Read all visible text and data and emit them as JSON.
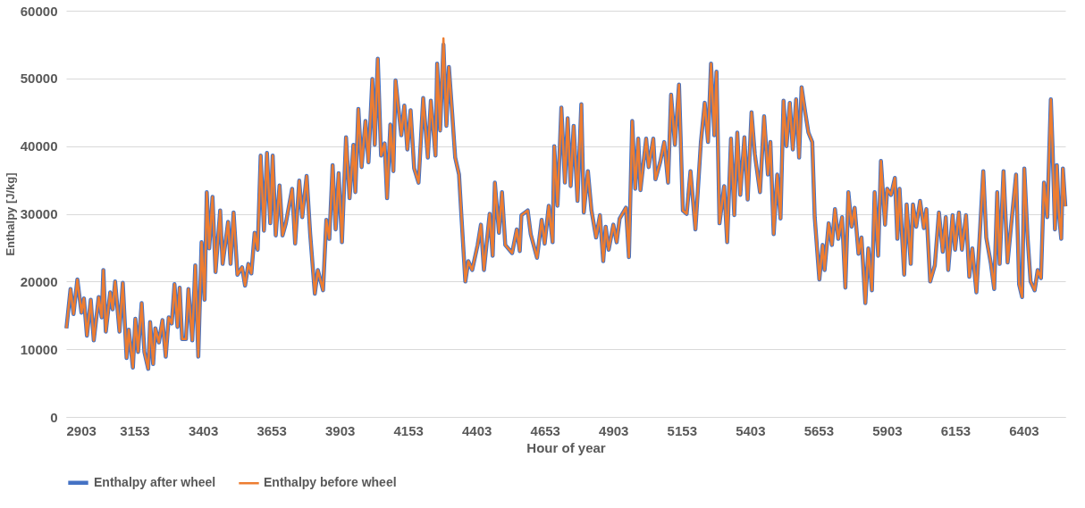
{
  "chart_data": {
    "type": "line",
    "xlabel": "Hour of year",
    "ylabel": "Enthalpy [J/kg]",
    "x": [
      2904,
      2919,
      2930,
      2944,
      2959,
      2968,
      2979,
      2993,
      3004,
      3022,
      3033,
      3039,
      3048,
      3064,
      3073,
      3082,
      3098,
      3110,
      3124,
      3132,
      3147,
      3156,
      3166,
      3179,
      3189,
      3203,
      3210,
      3221,
      3229,
      3242,
      3255,
      3267,
      3278,
      3289,
      3299,
      3310,
      3318,
      3327,
      3341,
      3350,
      3364,
      3375,
      3386,
      3398,
      3409,
      3417,
      3426,
      3438,
      3449,
      3466,
      3475,
      3495,
      3504,
      3515,
      3529,
      3546,
      3557,
      3569,
      3580,
      3592,
      3603,
      3614,
      3626,
      3637,
      3649,
      3658,
      3669,
      3683,
      3694,
      3706,
      3729,
      3740,
      3755,
      3766,
      3782,
      3795,
      3812,
      3823,
      3842,
      3854,
      3865,
      3877,
      3888,
      3899,
      3911,
      3926,
      3939,
      3953,
      3960,
      3971,
      3983,
      3997,
      4008,
      4022,
      4031,
      4042,
      4054,
      4067,
      4076,
      4088,
      4099,
      4107,
      4116,
      4128,
      4139,
      4150,
      4162,
      4175,
      4191,
      4208,
      4225,
      4236,
      4253,
      4259,
      4270,
      4282,
      4293,
      4302,
      4314,
      4325,
      4339,
      4348,
      4362,
      4373,
      4387,
      4407,
      4419,
      4430,
      4451,
      4462,
      4470,
      4485,
      4496,
      4508,
      4533,
      4550,
      4561,
      4567,
      4590,
      4601,
      4624,
      4641,
      4652,
      4667,
      4681,
      4687,
      4699,
      4713,
      4726,
      4736,
      4747,
      4758,
      4772,
      4786,
      4795,
      4810,
      4823,
      4840,
      4854,
      4866,
      4875,
      4886,
      4903,
      4915,
      4926,
      4949,
      4960,
      4972,
      4983,
      4994,
      5002,
      5023,
      5032,
      5049,
      5057,
      5074,
      5089,
      5103,
      5114,
      5128,
      5143,
      5157,
      5171,
      5185,
      5203,
      5223,
      5237,
      5249,
      5260,
      5272,
      5280,
      5291,
      5308,
      5319,
      5333,
      5345,
      5356,
      5367,
      5382,
      5394,
      5408,
      5420,
      5439,
      5454,
      5468,
      5477,
      5489,
      5502,
      5514,
      5525,
      5536,
      5548,
      5559,
      5571,
      5582,
      5591,
      5605,
      5616,
      5630,
      5639,
      5656,
      5668,
      5675,
      5690,
      5702,
      5713,
      5725,
      5739,
      5751,
      5762,
      5774,
      5785,
      5799,
      5810,
      5824,
      5835,
      5848,
      5858,
      5871,
      5881,
      5896,
      5904,
      5918,
      5932,
      5941,
      5949,
      5966,
      5975,
      5990,
      5998,
      6010,
      6024,
      6038,
      6047,
      6061,
      6078,
      6093,
      6107,
      6118,
      6127,
      6143,
      6152,
      6166,
      6177,
      6192,
      6204,
      6215,
      6230,
      6241,
      6255,
      6266,
      6283,
      6295,
      6306,
      6315,
      6329,
      6344,
      6355,
      6375,
      6386,
      6397,
      6405,
      6417,
      6428,
      6443,
      6454,
      6466,
      6477,
      6489,
      6502,
      6508,
      6517,
      6524,
      6531,
      6540,
      6546,
      6555
    ],
    "series": [
      {
        "name": "Enthalpy after wheel",
        "color": "#4472c4",
        "values": [
          13100,
          18900,
          15200,
          20300,
          15400,
          17500,
          12000,
          17300,
          11300,
          17700,
          14700,
          21700,
          12600,
          18400,
          15900,
          20000,
          12600,
          19800,
          8700,
          12900,
          7300,
          14500,
          9600,
          16800,
          9600,
          7100,
          14000,
          7800,
          13100,
          11000,
          14300,
          8900,
          14700,
          13800,
          19600,
          13300,
          19100,
          11500,
          11500,
          18900,
          11300,
          22400,
          8900,
          25800,
          17300,
          33200,
          24900,
          32500,
          21400,
          30500,
          22600,
          28800,
          22600,
          30200,
          21000,
          22100,
          19400,
          22600,
          21200,
          27200,
          24700,
          38600,
          27500,
          39000,
          28600,
          38600,
          26800,
          34200,
          26800,
          28600,
          33700,
          25600,
          34900,
          29500,
          35600,
          27000,
          18200,
          21700,
          18700,
          29100,
          26300,
          37200,
          27700,
          36000,
          25800,
          41300,
          32300,
          40200,
          33200,
          45500,
          36900,
          43700,
          37600,
          49900,
          40200,
          52900,
          38600,
          40400,
          32300,
          43200,
          36300,
          49700,
          46200,
          41600,
          46000,
          39500,
          45300,
          36700,
          34600,
          47100,
          38300,
          46700,
          38600,
          52200,
          42300,
          55000,
          43000,
          51700,
          44800,
          38300,
          35800,
          29500,
          20000,
          23000,
          21700,
          25400,
          28400,
          21700,
          30000,
          23800,
          34600,
          27200,
          33200,
          25400,
          24200,
          27700,
          24500,
          29800,
          30500,
          27000,
          23500,
          29100,
          25600,
          31200,
          25800,
          40000,
          31200,
          45700,
          34600,
          44100,
          34100,
          43000,
          31900,
          46200,
          30200,
          36300,
          30500,
          26500,
          29800,
          23000,
          28100,
          24700,
          28400,
          25800,
          29300,
          30900,
          23600,
          43700,
          33700,
          41100,
          33500,
          41100,
          36900,
          41100,
          35100,
          37600,
          40600,
          34600,
          47600,
          40200,
          49100,
          30500,
          30000,
          36300,
          27700,
          40600,
          46400,
          40600,
          52200,
          41600,
          51000,
          28600,
          34100,
          25800,
          41100,
          29800,
          42000,
          32800,
          41300,
          32100,
          45000,
          38800,
          33200,
          44400,
          35800,
          40600,
          27000,
          35800,
          29300,
          46700,
          40000,
          46400,
          39500,
          46900,
          38300,
          48700,
          44800,
          42000,
          40600,
          29500,
          20300,
          25400,
          21700,
          28600,
          25400,
          30700,
          26300,
          29500,
          19100,
          33200,
          28100,
          30900,
          24100,
          26500,
          16800,
          24900,
          18700,
          33200,
          23800,
          37800,
          28400,
          33700,
          32800,
          35300,
          26300,
          33700,
          21000,
          31400,
          22600,
          31400,
          28100,
          31900,
          27900,
          30700,
          20000,
          22400,
          30200,
          24400,
          29500,
          21700,
          29800,
          24700,
          30200,
          24700,
          29800,
          20700,
          24900,
          18400,
          26000,
          36300,
          26500,
          22600,
          18900,
          33200,
          22600,
          36300,
          22800,
          27500,
          35800,
          19600,
          17700,
          36700,
          26500,
          20000,
          18700,
          21700,
          20500,
          34600,
          29500,
          46900,
          40200,
          27700,
          37200,
          30300,
          26300,
          36700,
          31100
        ]
      },
      {
        "name": "Enthalpy before wheel",
        "color": "#ed7d31",
        "values": [
          13100,
          18900,
          15200,
          20300,
          15400,
          17500,
          12000,
          17300,
          11300,
          17700,
          14700,
          21700,
          12600,
          18400,
          15900,
          20000,
          12600,
          19800,
          8700,
          12900,
          7300,
          14500,
          9600,
          16800,
          9600,
          7100,
          14000,
          7800,
          13100,
          11000,
          14300,
          8900,
          14700,
          13800,
          19600,
          13300,
          19100,
          11500,
          11500,
          18900,
          11300,
          22400,
          8900,
          25800,
          17300,
          33200,
          24900,
          32500,
          21400,
          30500,
          22600,
          28800,
          22600,
          30200,
          21000,
          22100,
          19400,
          22600,
          21200,
          27200,
          24700,
          38600,
          27500,
          39000,
          28600,
          38600,
          26800,
          34200,
          26800,
          28600,
          33700,
          25600,
          34900,
          29500,
          35600,
          27000,
          18200,
          21700,
          18700,
          29100,
          26300,
          37200,
          27700,
          36000,
          25800,
          41300,
          32300,
          40200,
          33200,
          45500,
          36900,
          43700,
          37600,
          49900,
          40200,
          52900,
          38600,
          40400,
          32300,
          43200,
          36300,
          49700,
          46200,
          41600,
          46000,
          39500,
          45300,
          36700,
          34600,
          47100,
          38300,
          46700,
          38600,
          52200,
          42300,
          55900,
          43000,
          51700,
          44800,
          38300,
          35800,
          29500,
          20000,
          23000,
          21700,
          25400,
          28400,
          21700,
          30000,
          23800,
          34600,
          27200,
          33200,
          25400,
          24200,
          27700,
          24500,
          29800,
          30500,
          27000,
          23500,
          29100,
          25600,
          31200,
          25800,
          40000,
          31200,
          45700,
          34600,
          44100,
          34100,
          43000,
          31900,
          46200,
          30200,
          36300,
          30500,
          26500,
          29800,
          23000,
          28100,
          24700,
          28400,
          25800,
          29300,
          30900,
          23600,
          43700,
          33700,
          41100,
          33500,
          41100,
          36900,
          41100,
          35100,
          37600,
          40600,
          34600,
          47600,
          40200,
          49100,
          30500,
          30000,
          36300,
          27700,
          40600,
          46400,
          40600,
          52200,
          41600,
          51000,
          28600,
          34100,
          25800,
          41100,
          29800,
          42000,
          32800,
          41300,
          32100,
          45000,
          38800,
          33200,
          44400,
          35800,
          40600,
          27000,
          35800,
          29300,
          46700,
          40000,
          46400,
          39500,
          46900,
          38300,
          48700,
          44800,
          42000,
          40600,
          29500,
          20300,
          25400,
          21700,
          28600,
          25400,
          30700,
          26300,
          29500,
          19100,
          33200,
          28100,
          30900,
          24100,
          26500,
          16800,
          24900,
          18700,
          33200,
          23800,
          37800,
          28400,
          33700,
          32800,
          35300,
          26300,
          33700,
          21000,
          31400,
          22600,
          31400,
          28100,
          31900,
          27900,
          30700,
          20000,
          22400,
          30200,
          24400,
          29500,
          21700,
          29800,
          24700,
          30200,
          24700,
          29800,
          20700,
          24900,
          18400,
          26000,
          36300,
          26500,
          22600,
          18900,
          33200,
          22600,
          36300,
          22800,
          27500,
          35800,
          19600,
          17700,
          36700,
          26500,
          20000,
          18700,
          21700,
          20500,
          34600,
          29500,
          46900,
          40200,
          27700,
          37200,
          30300,
          26300,
          36700,
          31100
        ]
      }
    ],
    "xlim": [
      2903,
      6555
    ],
    "xticks": [
      2903,
      3153,
      3403,
      3653,
      3903,
      4153,
      4403,
      4653,
      4903,
      5153,
      5403,
      5653,
      5903,
      6153,
      6403
    ],
    "ylim": [
      0,
      60000
    ],
    "yticks": [
      0,
      10000,
      20000,
      30000,
      40000,
      50000,
      60000
    ],
    "grid": "y",
    "legend": "bottom",
    "marker": "none",
    "line_style": "solid"
  }
}
